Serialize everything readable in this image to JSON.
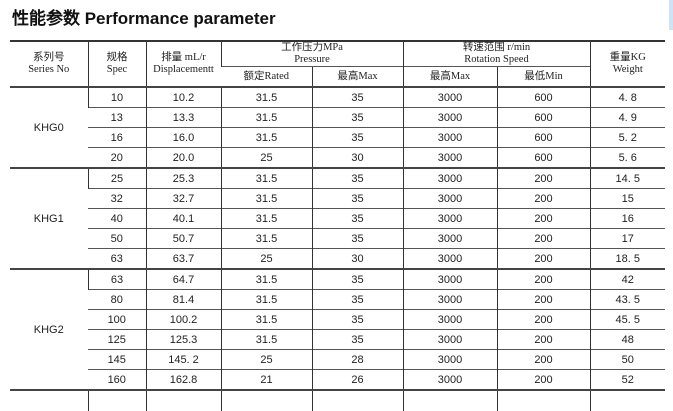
{
  "title": "性能参数 Performance parameter",
  "headers": {
    "series": [
      "系列号",
      "Series No"
    ],
    "spec": [
      "规格",
      "Spec"
    ],
    "displacement": [
      "排量 mL/r",
      "Displacementt"
    ],
    "pressure": [
      "工作压力MPa",
      "Pressure"
    ],
    "pressure_rated": "额定Rated",
    "pressure_max": "最高Max",
    "speed": [
      "转速范围 r/min",
      "Rotation Speed"
    ],
    "speed_max": "最高Max",
    "speed_min": "最低Min",
    "weight": [
      "重量KG",
      "Weight"
    ]
  },
  "groups": [
    {
      "series": "KHG0",
      "rows": [
        [
          "10",
          "10.2",
          "31.5",
          "35",
          "3000",
          "600",
          "4. 8"
        ],
        [
          "13",
          "13.3",
          "31.5",
          "35",
          "3000",
          "600",
          "4. 9"
        ],
        [
          "16",
          "16.0",
          "31.5",
          "35",
          "3000",
          "600",
          "5. 2"
        ],
        [
          "20",
          "20.0",
          "25",
          "30",
          "3000",
          "600",
          "5. 6"
        ]
      ]
    },
    {
      "series": "KHG1",
      "rows": [
        [
          "25",
          "25.3",
          "31.5",
          "35",
          "3000",
          "200",
          "14. 5"
        ],
        [
          "32",
          "32.7",
          "31.5",
          "35",
          "3000",
          "200",
          "15"
        ],
        [
          "40",
          "40.1",
          "31.5",
          "35",
          "3000",
          "200",
          "16"
        ],
        [
          "50",
          "50.7",
          "31.5",
          "35",
          "3000",
          "200",
          "17"
        ],
        [
          "63",
          "63.7",
          "25",
          "30",
          "3000",
          "200",
          "18. 5"
        ]
      ]
    },
    {
      "series": "KHG2",
      "rows": [
        [
          "63",
          "64.7",
          "31.5",
          "35",
          "3000",
          "200",
          "42"
        ],
        [
          "80",
          "81.4",
          "31.5",
          "35",
          "3000",
          "200",
          "43. 5"
        ],
        [
          "100",
          "100.2",
          "31.5",
          "35",
          "3000",
          "200",
          "45. 5"
        ],
        [
          "125",
          "125.3",
          "31.5",
          "35",
          "3000",
          "200",
          "48"
        ],
        [
          "145",
          "145. 2",
          "25",
          "28",
          "3000",
          "200",
          "50"
        ],
        [
          "160",
          "162.8",
          "21",
          "26",
          "3000",
          "200",
          "52"
        ]
      ]
    }
  ]
}
